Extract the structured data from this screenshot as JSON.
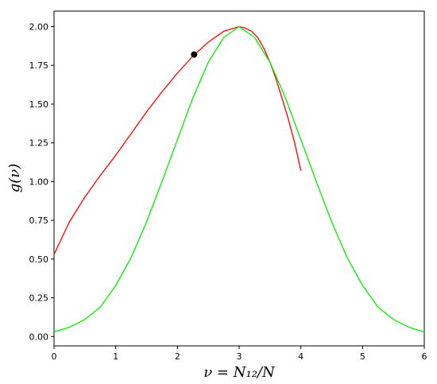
{
  "chart_data": {
    "type": "line",
    "xlabel": "ν = N₁₂/N",
    "ylabel": "g(ν)",
    "xlim": [
      0,
      6
    ],
    "ylim": [
      -0.06,
      2.1
    ],
    "x_ticks": [
      "0",
      "1",
      "2",
      "3",
      "4",
      "5",
      "6"
    ],
    "y_ticks": [
      "0.00",
      "0.25",
      "0.50",
      "0.75",
      "1.00",
      "1.25",
      "1.50",
      "1.75",
      "2.00"
    ],
    "grid": false,
    "series": [
      {
        "color": "#ff0000",
        "x": [
          0,
          0.25,
          0.5,
          0.75,
          1.0,
          1.25,
          1.5,
          1.75,
          2.0,
          2.25,
          2.5,
          2.75,
          3.0,
          3.1,
          3.2,
          3.3,
          3.4,
          3.5,
          3.6,
          3.7,
          3.8,
          3.9,
          4.0
        ],
        "y": [
          0.53,
          0.74,
          0.9,
          1.04,
          1.17,
          1.31,
          1.45,
          1.58,
          1.7,
          1.81,
          1.9,
          1.97,
          2.0,
          1.99,
          1.97,
          1.93,
          1.86,
          1.77,
          1.66,
          1.53,
          1.4,
          1.25,
          1.07
        ]
      },
      {
        "color": "#00ee00",
        "x": [
          0,
          0.25,
          0.5,
          0.75,
          1.0,
          1.25,
          1.5,
          1.75,
          2.0,
          2.25,
          2.5,
          2.75,
          3.0,
          3.25,
          3.5,
          3.75,
          4.0,
          4.25,
          4.5,
          4.75,
          5.0,
          5.25,
          5.5,
          5.75,
          6.0
        ],
        "y": [
          0.03,
          0.06,
          0.11,
          0.19,
          0.33,
          0.51,
          0.74,
          1.0,
          1.27,
          1.54,
          1.77,
          1.93,
          2.0,
          1.93,
          1.77,
          1.54,
          1.27,
          1.0,
          0.74,
          0.51,
          0.33,
          0.19,
          0.11,
          0.06,
          0.03
        ]
      }
    ],
    "marker": {
      "x": 2.27,
      "y": 1.82,
      "color": "#000000"
    }
  }
}
